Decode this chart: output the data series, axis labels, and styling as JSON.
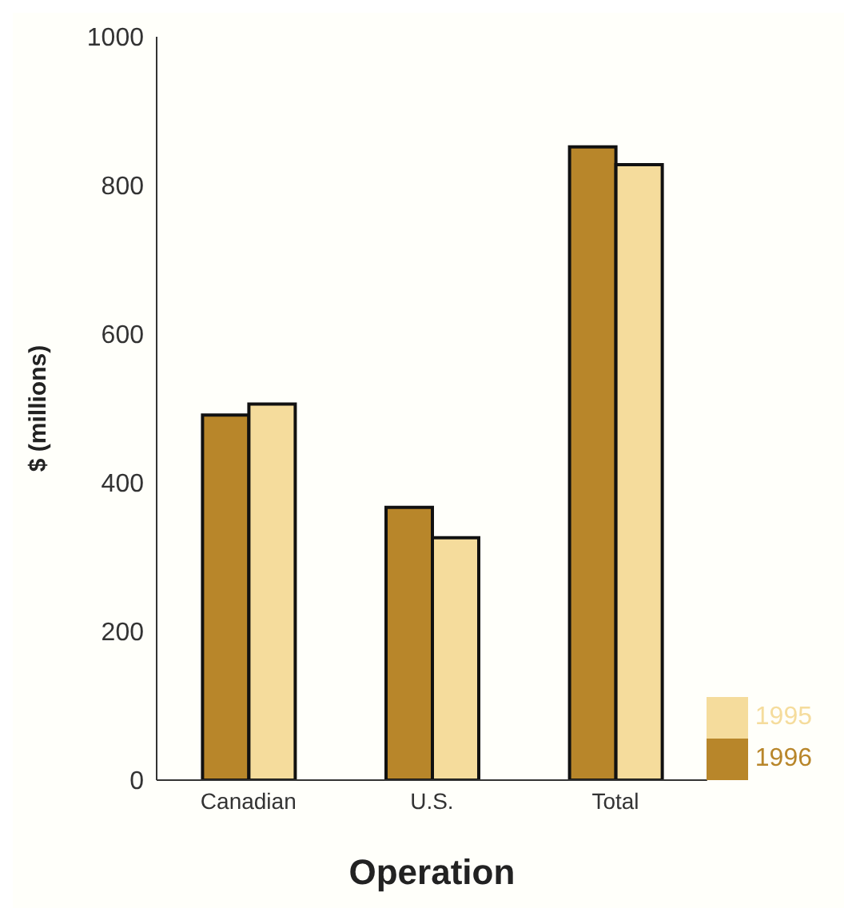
{
  "chart_data": {
    "type": "bar",
    "xlabel": "Operation",
    "ylabel": "$ (millions)",
    "categories": [
      "Canadian",
      "U.S.",
      "Total"
    ],
    "series": [
      {
        "name": "1996",
        "color": "#b8862a",
        "values": [
          491,
          367,
          852
        ]
      },
      {
        "name": "1995",
        "color": "#f5dc9c",
        "values": [
          506,
          326,
          828
        ]
      }
    ],
    "ylim": [
      0,
      1000
    ],
    "yticks": [
      0,
      200,
      400,
      600,
      800,
      1000
    ],
    "grid": false,
    "legend": "bottom right"
  }
}
